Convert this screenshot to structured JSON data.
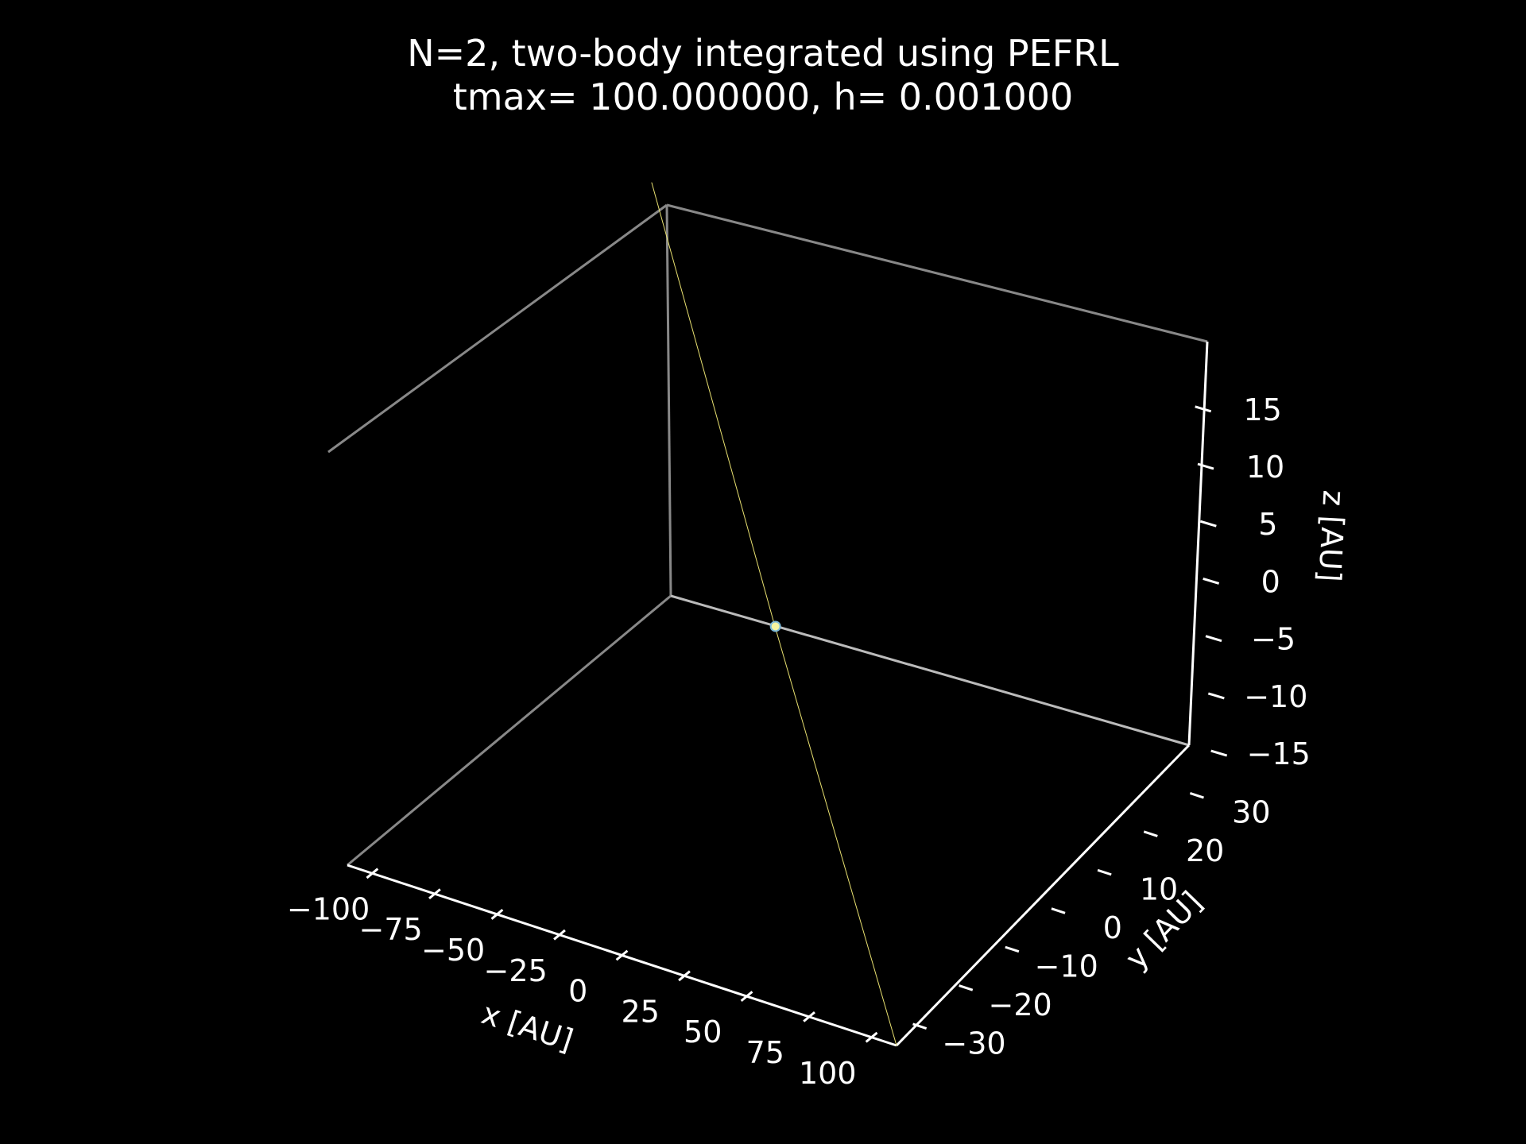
{
  "chart_data": {
    "type": "line",
    "projection": "3d",
    "title_line1": "N=2, two-body integrated using PEFRL",
    "title_line2": "tmax= 100.000000, h= 0.001000",
    "xlabel": "x [AU]",
    "ylabel": "y [AU]",
    "zlabel": "z [AU]",
    "xlim": [
      -110,
      110
    ],
    "ylim": [
      -35,
      35
    ],
    "zlim": [
      -17,
      19
    ],
    "x_ticks": [
      -100,
      -75,
      -50,
      -25,
      0,
      25,
      50,
      75,
      100
    ],
    "x_tick_labels": [
      "−100",
      "−75",
      "−50",
      "−25",
      "0",
      "25",
      "50",
      "75",
      "100"
    ],
    "y_ticks": [
      -30,
      -20,
      -10,
      0,
      10,
      20,
      30
    ],
    "y_tick_labels": [
      "−30",
      "−20",
      "−10",
      "0",
      "10",
      "20",
      "30"
    ],
    "z_ticks": [
      -15,
      -10,
      -5,
      0,
      5,
      10,
      15
    ],
    "z_tick_labels": [
      "−15",
      "−10",
      "−5",
      "0",
      "5",
      "10",
      "15"
    ],
    "grid": false,
    "background": "#000000",
    "axis_color": "#ffffff",
    "pane_edge_color": "#888888",
    "series": [
      {
        "color": "#7ab8d8",
        "points": [
          [
            0,
            0,
            0
          ],
          [
            0.6,
            0.2,
            0.1
          ]
        ]
      },
      {
        "color": "#e8e070",
        "points": [
          [
            -110,
            35,
            19
          ],
          [
            0,
            0,
            0
          ],
          [
            110,
            -35,
            -17
          ]
        ]
      }
    ]
  }
}
